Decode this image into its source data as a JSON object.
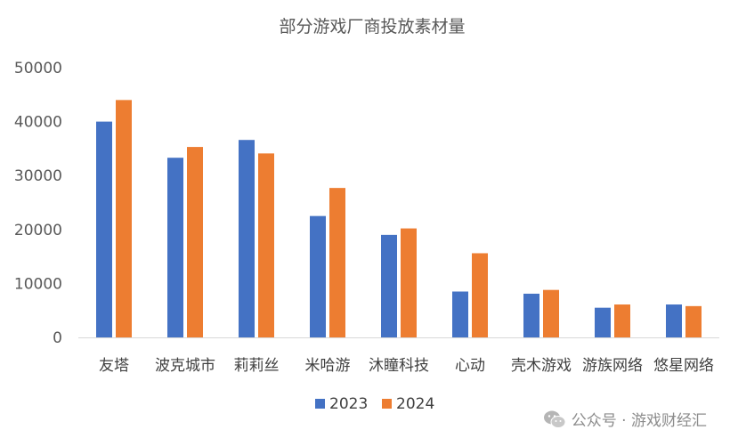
{
  "chart_data": {
    "type": "bar",
    "title": "部分游戏厂商投放素材量",
    "categories": [
      "友塔",
      "波克城市",
      "莉莉丝",
      "米哈游",
      "沐瞳科技",
      "心动",
      "壳木游戏",
      "游族网络",
      "悠星网络"
    ],
    "series": [
      {
        "name": "2023",
        "color": "#4472C4",
        "values": [
          40000,
          33300,
          36600,
          22500,
          19000,
          8500,
          8100,
          5500,
          6100
        ]
      },
      {
        "name": "2024",
        "color": "#ED7D31",
        "values": [
          44000,
          35300,
          34100,
          27700,
          20200,
          15600,
          8800,
          6100,
          5800
        ]
      }
    ],
    "ylim": [
      0,
      50000
    ],
    "yticks": [
      "0",
      "10000",
      "20000",
      "30000",
      "40000",
      "50000"
    ],
    "grid": false,
    "legend": "bottom"
  },
  "watermark": {
    "icon": "wechat-icon",
    "text": "公众号 · 游戏财经汇"
  }
}
